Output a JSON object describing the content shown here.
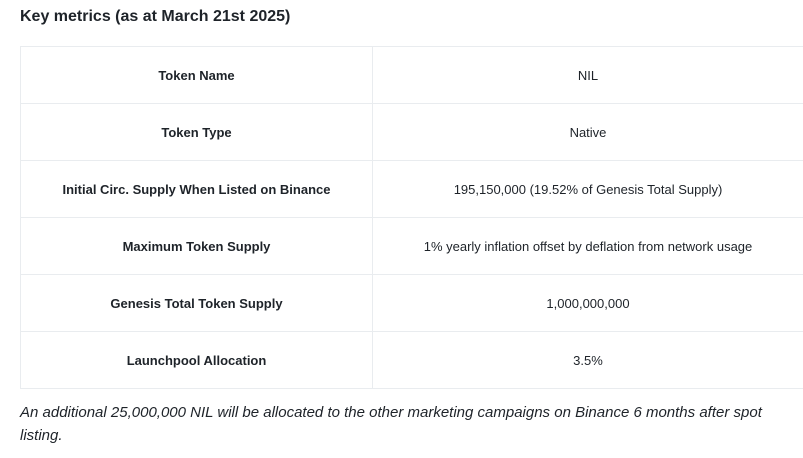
{
  "heading": "Key metrics (as at March 21st 2025)",
  "rows": [
    {
      "label": "Token Name",
      "value": "NIL"
    },
    {
      "label": "Token Type",
      "value": "Native"
    },
    {
      "label": "Initial Circ. Supply When Listed on Binance",
      "value": "195,150,000 (19.52% of Genesis Total Supply)"
    },
    {
      "label": "Maximum Token Supply",
      "value": "1% yearly inflation offset by deflation from network usage"
    },
    {
      "label": "Genesis Total Token Supply",
      "value": "1,000,000,000"
    },
    {
      "label": "Launchpool Allocation",
      "value": "3.5%"
    }
  ],
  "footnote": "An additional 25,000,000 NIL will be allocated to the other marketing campaigns on Binance 6 months after spot listing."
}
